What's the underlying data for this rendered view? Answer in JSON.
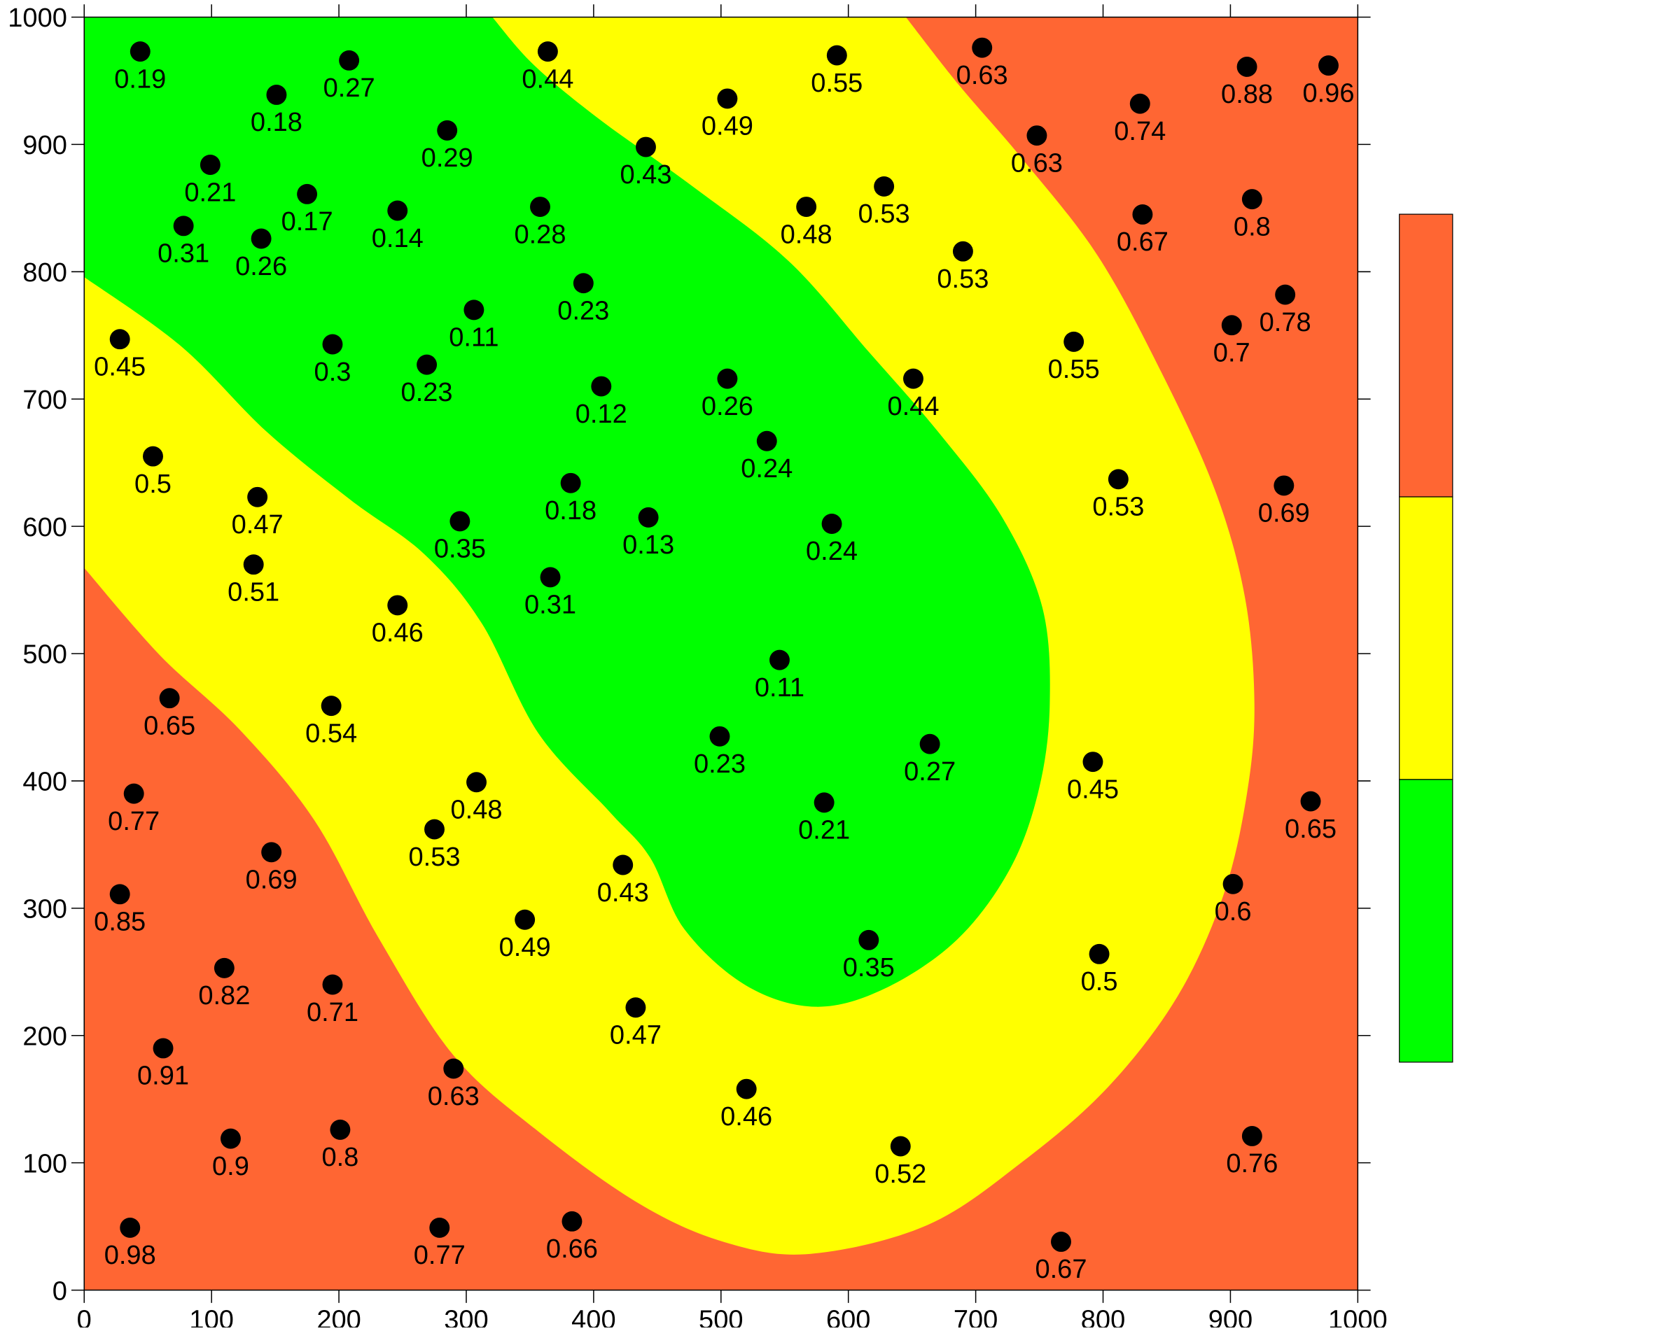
{
  "chart_data": {
    "type": "scatter",
    "xlim": [
      0,
      1000
    ],
    "ylim": [
      0,
      1000
    ],
    "xticks": [
      0,
      100,
      200,
      300,
      400,
      500,
      600,
      700,
      800,
      900,
      1000
    ],
    "yticks": [
      0,
      100,
      200,
      300,
      400,
      500,
      600,
      700,
      800,
      900,
      1000
    ],
    "contour_colors": [
      "#00ff00",
      "#ffff00",
      "#ff6633"
    ],
    "series": [
      {
        "color": "#000000",
        "x": [
          44,
          151,
          208,
          364,
          505,
          591,
          705,
          913,
          977,
          829,
          748,
          99,
          285,
          441,
          175,
          78,
          139,
          246,
          358,
          567,
          628,
          831,
          917,
          690,
          392,
          306,
          28,
          195,
          269,
          943,
          901,
          777,
          406,
          505,
          651,
          536,
          54,
          136,
          382,
          812,
          942,
          295,
          443,
          587,
          133,
          366,
          246,
          546,
          67,
          194,
          499,
          664,
          792,
          308,
          39,
          581,
          963,
          275,
          147,
          423,
          28,
          902,
          346,
          616,
          797,
          110,
          195,
          433,
          62,
          290,
          520,
          115,
          201,
          641,
          917,
          36,
          279,
          383,
          767
        ],
        "y": [
          973,
          939,
          966,
          973,
          936,
          970,
          976,
          961,
          962,
          932,
          907,
          884,
          911,
          898,
          861,
          836,
          826,
          848,
          851,
          851,
          867,
          845,
          857,
          816,
          791,
          770,
          747,
          743,
          727,
          782,
          758,
          745,
          710,
          716,
          716,
          667,
          655,
          623,
          634,
          637,
          632,
          604,
          607,
          602,
          570,
          560,
          538,
          495,
          465,
          459,
          435,
          429,
          415,
          399,
          390,
          383,
          384,
          362,
          344,
          334,
          311,
          319,
          291,
          275,
          264,
          253,
          240,
          222,
          190,
          174,
          158,
          119,
          126,
          113,
          121,
          49,
          49,
          54,
          38
        ],
        "z": [
          0.19,
          0.18,
          0.27,
          0.44,
          0.49,
          0.55,
          0.63,
          0.88,
          0.96,
          0.74,
          0.63,
          0.21,
          0.29,
          0.43,
          0.17,
          0.31,
          0.26,
          0.14,
          0.28,
          0.48,
          0.53,
          0.67,
          0.8,
          0.53,
          0.23,
          0.11,
          0.45,
          0.3,
          0.23,
          0.78,
          0.7,
          0.55,
          0.12,
          0.26,
          0.44,
          0.24,
          0.5,
          0.47,
          0.18,
          0.53,
          0.69,
          0.35,
          0.13,
          0.24,
          0.51,
          0.31,
          0.46,
          0.11,
          0.65,
          0.54,
          0.23,
          0.27,
          0.45,
          0.48,
          0.77,
          0.21,
          0.65,
          0.53,
          0.69,
          0.43,
          0.85,
          0.6,
          0.49,
          0.35,
          0.5,
          0.82,
          0.71,
          0.47,
          0.91,
          0.63,
          0.46,
          0.9,
          0.8,
          0.52,
          0.76,
          0.98,
          0.77,
          0.66,
          0.67
        ]
      }
    ]
  }
}
